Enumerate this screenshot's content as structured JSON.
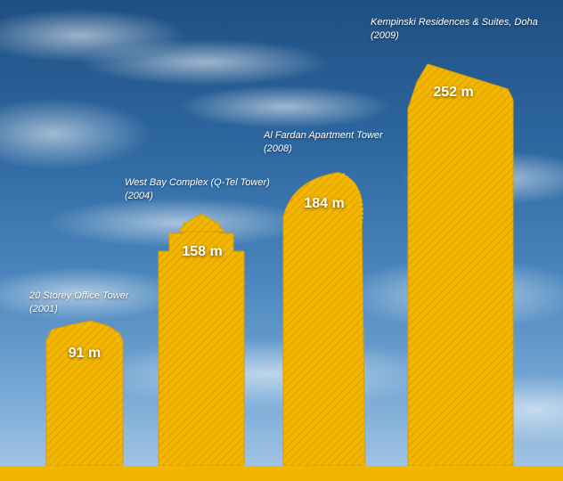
{
  "colors": {
    "tower_fill": "#f2b500",
    "tower_hatch": "#d99e00",
    "ground": "#f2b500",
    "sky_top": "#1f4f82",
    "sky_bottom": "#a9c9e6"
  },
  "chart_data": {
    "type": "bar",
    "title": "",
    "xlabel": "",
    "ylabel": "",
    "ylim": [
      0,
      260
    ],
    "grid": false,
    "categories": [
      "20 Storey Office Tower",
      "West Bay Complex (Q-Tel Tower)",
      "Al Fardan Apartment Tower",
      "Kempinski Residences & Suites, Doha"
    ],
    "years": [
      "(2001)",
      "(2004)",
      "(2008)",
      "(2009)"
    ],
    "values": [
      91,
      158,
      184,
      252
    ],
    "value_labels": [
      "91 m",
      "158 m",
      "184 m",
      "252 m"
    ]
  }
}
